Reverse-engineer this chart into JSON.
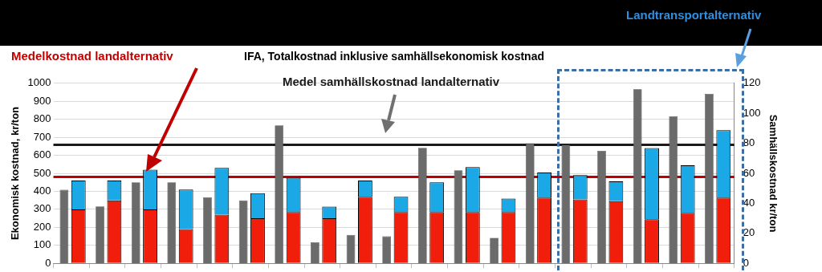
{
  "chart_data": {
    "type": "bar",
    "title": "IFA, Totalkostnad inklusive samhällsekonomisk kostnad",
    "ylabel": "Ekonomisk kostnad, kr/ton",
    "y2label": "Samhällskostnad kr/ton",
    "categories": [
      null,
      null,
      null,
      null,
      null,
      null,
      null,
      null,
      null,
      null,
      null,
      null,
      null,
      null,
      null,
      null,
      null,
      null,
      null
    ],
    "stacked": true,
    "series": [
      {
        "color": "#f01e0a",
        "values": [
          300,
          350,
          300,
          190,
          270,
          250,
          285,
          250,
          370,
          285,
          285,
          285,
          285,
          365,
          355,
          345,
          245,
          280,
          365
        ]
      },
      {
        "color": "#1aa9e6",
        "values": [
          160,
          110,
          220,
          220,
          260,
          140,
          190,
          65,
          90,
          85,
          165,
          250,
          75,
          140,
          135,
          110,
          395,
          265,
          375
        ]
      },
      {
        "color": "#6b6b6b",
        "axis": "y2",
        "values": [
          49,
          38,
          54,
          54,
          44,
          42,
          92,
          14,
          19,
          18,
          77,
          62,
          17,
          80,
          79,
          75,
          116,
          98,
          113
        ]
      }
    ],
    "ylim": [
      0,
      1000
    ],
    "yticks": [
      0,
      100,
      200,
      300,
      400,
      500,
      600,
      700,
      800,
      900,
      1000
    ],
    "y2lim": [
      0,
      120
    ],
    "y2ticks": [
      0,
      20,
      40,
      60,
      80,
      100,
      120
    ],
    "grid": "y",
    "legend": false,
    "ref_lines": [
      {
        "axis": "y",
        "value": 480,
        "label": "Medelkostnad landalternativ",
        "color": "#c00000"
      },
      {
        "axis": "y2",
        "value": 79,
        "label": "Medel samhällskostnad landalternativ",
        "color": "#1a1a1a"
      }
    ],
    "annotations": [
      "Landtransportalternativ"
    ]
  }
}
